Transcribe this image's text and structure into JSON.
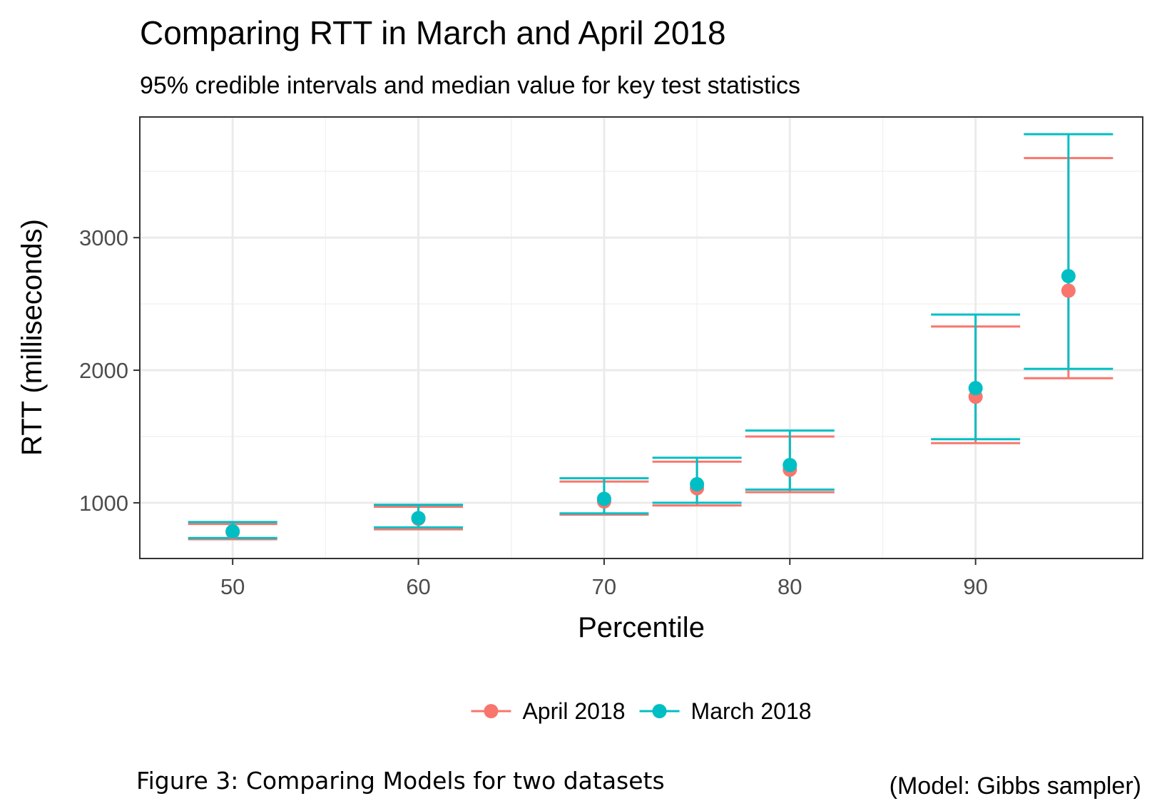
{
  "chart_data": {
    "type": "errorbar",
    "title": "Comparing RTT in March and April 2018",
    "subtitle": "95% credible intervals and median value for key test statistics",
    "xlabel": "Percentile",
    "ylabel": "RTT (milliseconds)",
    "xlim": [
      45,
      99
    ],
    "ylim": [
      580,
      3910
    ],
    "x_ticks": [
      50,
      60,
      70,
      80,
      90
    ],
    "x_tick_labels": [
      "50",
      "60",
      "70",
      "80",
      "90"
    ],
    "y_ticks": [
      1000,
      2000,
      3000
    ],
    "y_tick_labels": [
      "1000",
      "2000",
      "3000"
    ],
    "grid": true,
    "legend_position": "bottom",
    "series": [
      {
        "name": "April 2018",
        "color": "#F8766D",
        "points": [
          {
            "x": 50,
            "median": 780,
            "lower": 725,
            "upper": 840
          },
          {
            "x": 60,
            "median": 880,
            "lower": 800,
            "upper": 970
          },
          {
            "x": 70,
            "median": 1010,
            "lower": 910,
            "upper": 1160
          },
          {
            "x": 75,
            "median": 1110,
            "lower": 980,
            "upper": 1310
          },
          {
            "x": 80,
            "median": 1250,
            "lower": 1080,
            "upper": 1500
          },
          {
            "x": 90,
            "median": 1800,
            "lower": 1450,
            "upper": 2330
          },
          {
            "x": 95,
            "median": 2600,
            "lower": 1940,
            "upper": 3600
          }
        ]
      },
      {
        "name": "March 2018",
        "color": "#00BFC4",
        "points": [
          {
            "x": 50,
            "median": 785,
            "lower": 735,
            "upper": 855
          },
          {
            "x": 60,
            "median": 885,
            "lower": 815,
            "upper": 985
          },
          {
            "x": 70,
            "median": 1030,
            "lower": 920,
            "upper": 1185
          },
          {
            "x": 75,
            "median": 1140,
            "lower": 1000,
            "upper": 1340
          },
          {
            "x": 80,
            "median": 1285,
            "lower": 1100,
            "upper": 1545
          },
          {
            "x": 90,
            "median": 1865,
            "lower": 1480,
            "upper": 2420
          },
          {
            "x": 95,
            "median": 2710,
            "lower": 2010,
            "upper": 3780
          }
        ]
      }
    ]
  },
  "caption": "Figure 3: Comparing Models for two datasets",
  "model_note": "(Model: Gibbs sampler)"
}
